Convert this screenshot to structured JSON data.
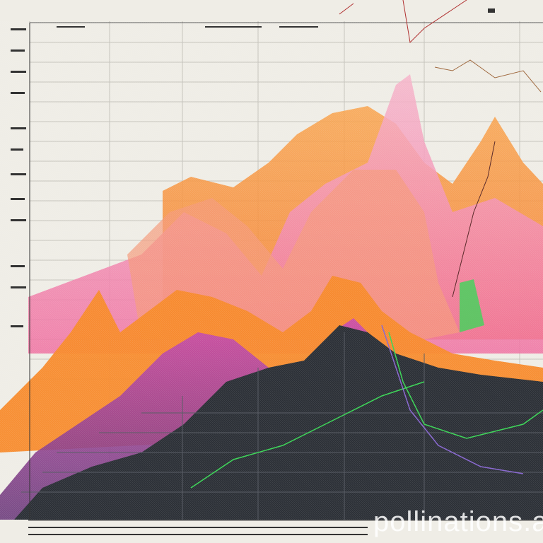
{
  "watermark": "pollinations.ai",
  "colors": {
    "background": "#efede6",
    "grid": "#b9b7b0",
    "dark_area": "#2b2f36",
    "orange": "#f7902e",
    "salmon": "#f59a7a",
    "pink": "#f28cb4",
    "magenta": "#d23aa0",
    "green": "#3fd65a"
  }
}
